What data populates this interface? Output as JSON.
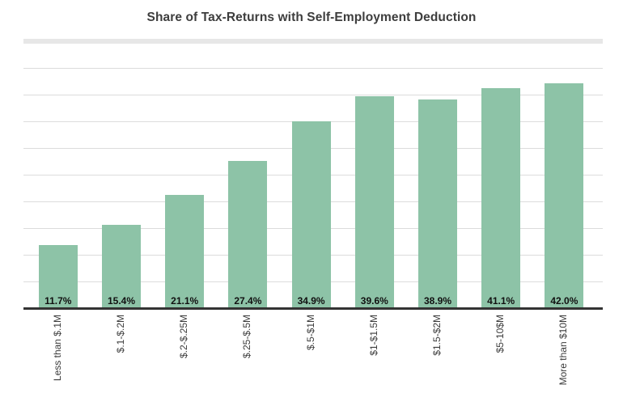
{
  "chart_data": {
    "type": "bar",
    "title": "Share of Tax-Returns with Self-Employment Deduction",
    "categories": [
      "Less than $.1M",
      "$.1-$.2M",
      "$.2-$.25M",
      "$.25-$.5M",
      "$.5-$1M",
      "$1-$1.5M",
      "$1.5-$2M",
      "$5-10$M",
      "More than $10M"
    ],
    "values": [
      11.7,
      15.4,
      21.1,
      27.4,
      34.9,
      39.6,
      38.9,
      41.1,
      42.0
    ],
    "value_labels": [
      "11.7%",
      "15.4%",
      "21.1%",
      "27.4%",
      "34.9%",
      "39.6%",
      "38.9%",
      "41.1%",
      "42.0%"
    ],
    "xlabel": "",
    "ylabel": "",
    "ylim": [
      0,
      50
    ],
    "grid_step": 5,
    "grid": true,
    "legend": false,
    "value_labels_position": "inside-bottom",
    "category_label_rotation": -90,
    "bar_color": "#8dc3a7",
    "axis_color": "#333333",
    "gridline_color": "#dcdcdc",
    "band_color": "#e7e7e7",
    "title_color": "#3d3d3d",
    "value_label_color": "#111111",
    "category_label_color": "#3a3a3a",
    "background_color": "#ffffff"
  }
}
